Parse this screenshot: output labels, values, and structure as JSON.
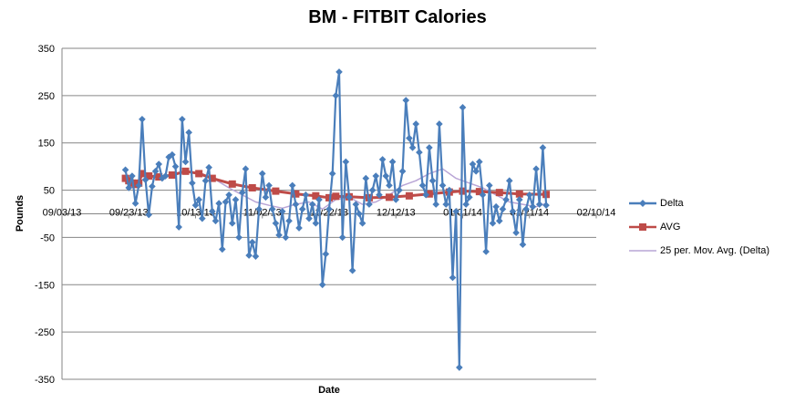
{
  "chart_data": {
    "type": "line",
    "title": "BM - FITBIT Calories",
    "xlabel": "Date",
    "ylabel": "Pounds",
    "ylim": [
      -350,
      350
    ],
    "yticks": [
      350,
      250,
      150,
      50,
      -50,
      -150,
      -250,
      -350
    ],
    "xlim": [
      "2013-09-03",
      "2014-02-10"
    ],
    "xticks": [
      "2013-09-03",
      "2013-09-23",
      "2013-10-13",
      "2013-11-02",
      "2013-11-22",
      "2013-12-12",
      "2014-01-01",
      "2014-01-21",
      "2014-02-10"
    ],
    "xtick_labels": [
      "09/03/13",
      "09/23/13",
      "10/13/13",
      "11/02/13",
      "11/22/13",
      "12/12/13",
      "01/01/14",
      "01/21/14",
      "02/10/14"
    ],
    "grid": "horizontal",
    "legend": "right",
    "colors": {
      "Delta": "#4a7ebb",
      "AVG": "#be4b48",
      "25 per. Mov. Avg. (Delta)": "#b9a5d6"
    },
    "series": [
      {
        "name": "Delta",
        "style": "line-diamond",
        "points": [
          [
            "2013-09-22",
            93
          ],
          [
            "2013-09-23",
            55
          ],
          [
            "2013-09-24",
            80
          ],
          [
            "2013-09-25",
            22
          ],
          [
            "2013-09-26",
            60
          ],
          [
            "2013-09-27",
            200
          ],
          [
            "2013-09-28",
            72
          ],
          [
            "2013-09-29",
            -2
          ],
          [
            "2013-09-30",
            58
          ],
          [
            "2013-10-01",
            90
          ],
          [
            "2013-10-02",
            105
          ],
          [
            "2013-10-03",
            75
          ],
          [
            "2013-10-04",
            80
          ],
          [
            "2013-10-05",
            120
          ],
          [
            "2013-10-06",
            125
          ],
          [
            "2013-10-07",
            100
          ],
          [
            "2013-10-08",
            -28
          ],
          [
            "2013-10-09",
            200
          ],
          [
            "2013-10-10",
            110
          ],
          [
            "2013-10-11",
            172
          ],
          [
            "2013-10-12",
            65
          ],
          [
            "2013-10-13",
            18
          ],
          [
            "2013-10-14",
            30
          ],
          [
            "2013-10-15",
            -10
          ],
          [
            "2013-10-16",
            70
          ],
          [
            "2013-10-17",
            98
          ],
          [
            "2013-10-18",
            5
          ],
          [
            "2013-10-19",
            -15
          ],
          [
            "2013-10-20",
            22
          ],
          [
            "2013-10-21",
            -75
          ],
          [
            "2013-10-22",
            25
          ],
          [
            "2013-10-23",
            40
          ],
          [
            "2013-10-24",
            -20
          ],
          [
            "2013-10-25",
            30
          ],
          [
            "2013-10-26",
            -50
          ],
          [
            "2013-10-27",
            45
          ],
          [
            "2013-10-28",
            95
          ],
          [
            "2013-10-29",
            -88
          ],
          [
            "2013-10-30",
            -60
          ],
          [
            "2013-10-31",
            -90
          ],
          [
            "2013-11-01",
            10
          ],
          [
            "2013-11-02",
            85
          ],
          [
            "2013-11-03",
            35
          ],
          [
            "2013-11-04",
            60
          ],
          [
            "2013-11-05",
            10
          ],
          [
            "2013-11-06",
            -20
          ],
          [
            "2013-11-07",
            -45
          ],
          [
            "2013-11-08",
            5
          ],
          [
            "2013-11-09",
            -50
          ],
          [
            "2013-11-10",
            -15
          ],
          [
            "2013-11-11",
            60
          ],
          [
            "2013-11-12",
            20
          ],
          [
            "2013-11-13",
            -30
          ],
          [
            "2013-11-14",
            10
          ],
          [
            "2013-11-15",
            40
          ],
          [
            "2013-11-16",
            -10
          ],
          [
            "2013-11-17",
            20
          ],
          [
            "2013-11-18",
            -20
          ],
          [
            "2013-11-19",
            30
          ],
          [
            "2013-11-20",
            -150
          ],
          [
            "2013-11-21",
            -85
          ],
          [
            "2013-11-22",
            10
          ],
          [
            "2013-11-23",
            85
          ],
          [
            "2013-11-24",
            250
          ],
          [
            "2013-11-25",
            300
          ],
          [
            "2013-11-26",
            -50
          ],
          [
            "2013-11-27",
            110
          ],
          [
            "2013-11-28",
            35
          ],
          [
            "2013-11-29",
            -120
          ],
          [
            "2013-11-30",
            20
          ],
          [
            "2013-12-01",
            0
          ],
          [
            "2013-12-02",
            -20
          ],
          [
            "2013-12-03",
            75
          ],
          [
            "2013-12-04",
            20
          ],
          [
            "2013-12-05",
            50
          ],
          [
            "2013-12-06",
            80
          ],
          [
            "2013-12-07",
            40
          ],
          [
            "2013-12-08",
            115
          ],
          [
            "2013-12-09",
            80
          ],
          [
            "2013-12-10",
            60
          ],
          [
            "2013-12-11",
            110
          ],
          [
            "2013-12-12",
            30
          ],
          [
            "2013-12-13",
            50
          ],
          [
            "2013-12-14",
            90
          ],
          [
            "2013-12-15",
            240
          ],
          [
            "2013-12-16",
            160
          ],
          [
            "2013-12-17",
            140
          ],
          [
            "2013-12-18",
            190
          ],
          [
            "2013-12-19",
            130
          ],
          [
            "2013-12-20",
            60
          ],
          [
            "2013-12-21",
            40
          ],
          [
            "2013-12-22",
            140
          ],
          [
            "2013-12-23",
            70
          ],
          [
            "2013-12-24",
            20
          ],
          [
            "2013-12-25",
            190
          ],
          [
            "2013-12-26",
            60
          ],
          [
            "2013-12-27",
            20
          ],
          [
            "2013-12-28",
            50
          ],
          [
            "2013-12-29",
            -135
          ],
          [
            "2013-12-30",
            5
          ],
          [
            "2013-12-31",
            -325
          ],
          [
            "2014-01-01",
            225
          ],
          [
            "2014-01-02",
            20
          ],
          [
            "2014-01-03",
            35
          ],
          [
            "2014-01-04",
            105
          ],
          [
            "2014-01-05",
            90
          ],
          [
            "2014-01-06",
            110
          ],
          [
            "2014-01-07",
            40
          ],
          [
            "2014-01-08",
            -80
          ],
          [
            "2014-01-09",
            60
          ],
          [
            "2014-01-10",
            -20
          ],
          [
            "2014-01-11",
            15
          ],
          [
            "2014-01-12",
            -15
          ],
          [
            "2014-01-13",
            10
          ],
          [
            "2014-01-14",
            30
          ],
          [
            "2014-01-15",
            70
          ],
          [
            "2014-01-16",
            5
          ],
          [
            "2014-01-17",
            -40
          ],
          [
            "2014-01-18",
            30
          ],
          [
            "2014-01-19",
            -65
          ],
          [
            "2014-01-20",
            10
          ],
          [
            "2014-01-21",
            40
          ],
          [
            "2014-01-22",
            15
          ],
          [
            "2014-01-23",
            95
          ],
          [
            "2014-01-24",
            20
          ],
          [
            "2014-01-25",
            140
          ],
          [
            "2014-01-26",
            18
          ]
        ]
      },
      {
        "name": "AVG",
        "style": "line-square",
        "points": [
          [
            "2013-09-22",
            75
          ],
          [
            "2013-09-23",
            70
          ],
          [
            "2013-09-24",
            65
          ],
          [
            "2013-09-25",
            62
          ],
          [
            "2013-09-26",
            65
          ],
          [
            "2013-09-27",
            85
          ],
          [
            "2013-09-29",
            80
          ],
          [
            "2013-10-02",
            78
          ],
          [
            "2013-10-06",
            82
          ],
          [
            "2013-10-10",
            90
          ],
          [
            "2013-10-14",
            85
          ],
          [
            "2013-10-18",
            75
          ],
          [
            "2013-10-24",
            63
          ],
          [
            "2013-10-30",
            55
          ],
          [
            "2013-11-06",
            48
          ],
          [
            "2013-11-12",
            42
          ],
          [
            "2013-11-18",
            38
          ],
          [
            "2013-11-22",
            34
          ],
          [
            "2013-11-24",
            37
          ],
          [
            "2013-11-28",
            36
          ],
          [
            "2013-12-04",
            34
          ],
          [
            "2013-12-10",
            35
          ],
          [
            "2013-12-16",
            38
          ],
          [
            "2013-12-22",
            42
          ],
          [
            "2013-12-28",
            46
          ],
          [
            "2014-01-01",
            48
          ],
          [
            "2014-01-06",
            47
          ],
          [
            "2014-01-12",
            45
          ],
          [
            "2014-01-18",
            42
          ],
          [
            "2014-01-26",
            41
          ]
        ]
      },
      {
        "name": "25 per. Mov. Avg. (Delta)",
        "style": "line",
        "points": [
          [
            "2013-10-15",
            85
          ],
          [
            "2013-10-19",
            72
          ],
          [
            "2013-10-23",
            55
          ],
          [
            "2013-10-27",
            40
          ],
          [
            "2013-10-31",
            25
          ],
          [
            "2013-11-04",
            18
          ],
          [
            "2013-11-08",
            12
          ],
          [
            "2013-11-12",
            20
          ],
          [
            "2013-11-16",
            25
          ],
          [
            "2013-11-20",
            10
          ],
          [
            "2013-11-24",
            30
          ],
          [
            "2013-11-28",
            35
          ],
          [
            "2013-12-02",
            20
          ],
          [
            "2013-12-06",
            25
          ],
          [
            "2013-12-10",
            40
          ],
          [
            "2013-12-14",
            60
          ],
          [
            "2013-12-18",
            70
          ],
          [
            "2013-12-22",
            85
          ],
          [
            "2013-12-26",
            95
          ],
          [
            "2013-12-30",
            75
          ],
          [
            "2014-01-03",
            65
          ],
          [
            "2014-01-07",
            55
          ],
          [
            "2014-01-11",
            40
          ],
          [
            "2014-01-15",
            25
          ],
          [
            "2014-01-19",
            20
          ],
          [
            "2014-01-23",
            15
          ],
          [
            "2014-01-26",
            22
          ]
        ]
      }
    ]
  }
}
